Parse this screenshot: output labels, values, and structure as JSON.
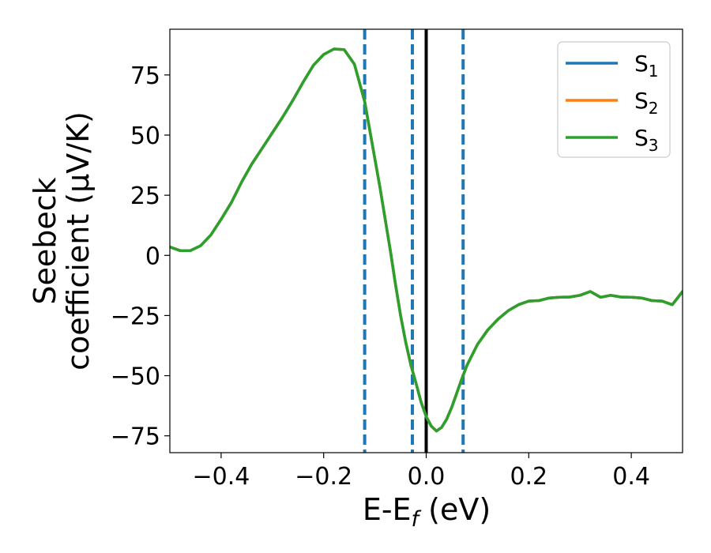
{
  "chart_data": {
    "type": "line",
    "xlabel": "E-E",
    "xlabel_sub": "f",
    "xlabel_unit": " (eV)",
    "ylabel_line1": "Seebeck",
    "ylabel_line2": "coefficient  (μV/K)",
    "xlim": [
      -0.5,
      0.5
    ],
    "ylim": [
      -82,
      94
    ],
    "xticks": [
      -0.4,
      -0.2,
      0.0,
      0.2,
      0.4
    ],
    "xtick_labels": [
      "−0.4",
      "−0.2",
      "0.0",
      "0.2",
      "0.4"
    ],
    "yticks": [
      75,
      50,
      25,
      0,
      -25,
      -50,
      -75
    ],
    "ytick_labels": [
      "75",
      "50",
      "25",
      "0",
      "−25",
      "−50",
      "−75"
    ],
    "grid": false,
    "legend_position": "top-right",
    "vertical_lines": [
      {
        "x": -0.12,
        "style": "dashed",
        "color": "#1f77b4"
      },
      {
        "x": -0.027,
        "style": "dashed",
        "color": "#1f77b4"
      },
      {
        "x": 0.0,
        "style": "solid",
        "color": "#000000"
      },
      {
        "x": 0.072,
        "style": "dashed",
        "color": "#1f77b4"
      }
    ],
    "x": [
      -0.5,
      -0.48,
      -0.46,
      -0.44,
      -0.42,
      -0.4,
      -0.38,
      -0.36,
      -0.34,
      -0.32,
      -0.3,
      -0.28,
      -0.26,
      -0.24,
      -0.22,
      -0.2,
      -0.18,
      -0.16,
      -0.14,
      -0.12,
      -0.1,
      -0.09,
      -0.08,
      -0.07,
      -0.06,
      -0.05,
      -0.04,
      -0.03,
      -0.02,
      -0.01,
      0.0,
      0.01,
      0.02,
      0.03,
      0.04,
      0.05,
      0.06,
      0.07,
      0.08,
      0.1,
      0.12,
      0.14,
      0.16,
      0.18,
      0.2,
      0.22,
      0.24,
      0.26,
      0.28,
      0.3,
      0.32,
      0.34,
      0.36,
      0.38,
      0.4,
      0.42,
      0.44,
      0.46,
      0.48,
      0.5
    ],
    "series": [
      {
        "name": "S",
        "sub": "1",
        "color": "#1f77b4",
        "values": [
          3.5,
          2.0,
          2.0,
          4.0,
          8.5,
          15.0,
          22.0,
          30.5,
          38.0,
          44.5,
          51.0,
          57.5,
          64.5,
          72.0,
          79.0,
          83.5,
          85.8,
          85.5,
          79.5,
          64.0,
          40.0,
          28.0,
          15.0,
          2.0,
          -12.0,
          -25.0,
          -36.0,
          -45.5,
          -53.0,
          -61.0,
          -67.0,
          -71.0,
          -73.0,
          -71.5,
          -68.0,
          -63.0,
          -57.0,
          -51.0,
          -45.5,
          -37.0,
          -31.0,
          -26.5,
          -23.0,
          -20.5,
          -19.0,
          -18.8,
          -17.7,
          -17.4,
          -17.3,
          -16.6,
          -15.0,
          -17.4,
          -16.6,
          -17.3,
          -17.4,
          -17.7,
          -18.8,
          -19.0,
          -20.5,
          -15.0
        ]
      },
      {
        "name": "S",
        "sub": "2",
        "color": "#ff7f0e",
        "values": [
          3.5,
          2.0,
          2.0,
          4.0,
          8.5,
          15.0,
          22.0,
          30.5,
          38.0,
          44.5,
          51.0,
          57.5,
          64.5,
          72.0,
          79.0,
          83.5,
          85.8,
          85.5,
          79.5,
          64.0,
          40.0,
          28.0,
          15.0,
          2.0,
          -12.0,
          -25.0,
          -36.0,
          -45.5,
          -53.0,
          -61.0,
          -67.0,
          -71.0,
          -73.0,
          -71.5,
          -68.0,
          -63.0,
          -57.0,
          -51.0,
          -45.5,
          -37.0,
          -31.0,
          -26.5,
          -23.0,
          -20.5,
          -19.0,
          -18.8,
          -17.7,
          -17.4,
          -17.3,
          -16.6,
          -15.0,
          -17.4,
          -16.6,
          -17.3,
          -17.4,
          -17.7,
          -18.8,
          -19.0,
          -20.5,
          -15.0
        ]
      },
      {
        "name": "S",
        "sub": "3",
        "color": "#2ca02c",
        "values": [
          3.5,
          2.0,
          2.0,
          4.0,
          8.5,
          15.0,
          22.0,
          30.5,
          38.0,
          44.5,
          51.0,
          57.5,
          64.5,
          72.0,
          79.0,
          83.5,
          85.8,
          85.5,
          79.5,
          64.0,
          40.0,
          28.0,
          15.0,
          2.0,
          -12.0,
          -25.0,
          -36.0,
          -45.5,
          -53.0,
          -61.0,
          -67.0,
          -71.0,
          -73.0,
          -71.5,
          -68.0,
          -63.0,
          -57.0,
          -51.0,
          -45.5,
          -37.0,
          -31.0,
          -26.5,
          -23.0,
          -20.5,
          -19.0,
          -18.8,
          -17.7,
          -17.4,
          -17.3,
          -16.6,
          -15.0,
          -17.4,
          -16.6,
          -17.3,
          -17.4,
          -17.7,
          -18.8,
          -19.0,
          -20.5,
          -15.0
        ]
      }
    ]
  }
}
